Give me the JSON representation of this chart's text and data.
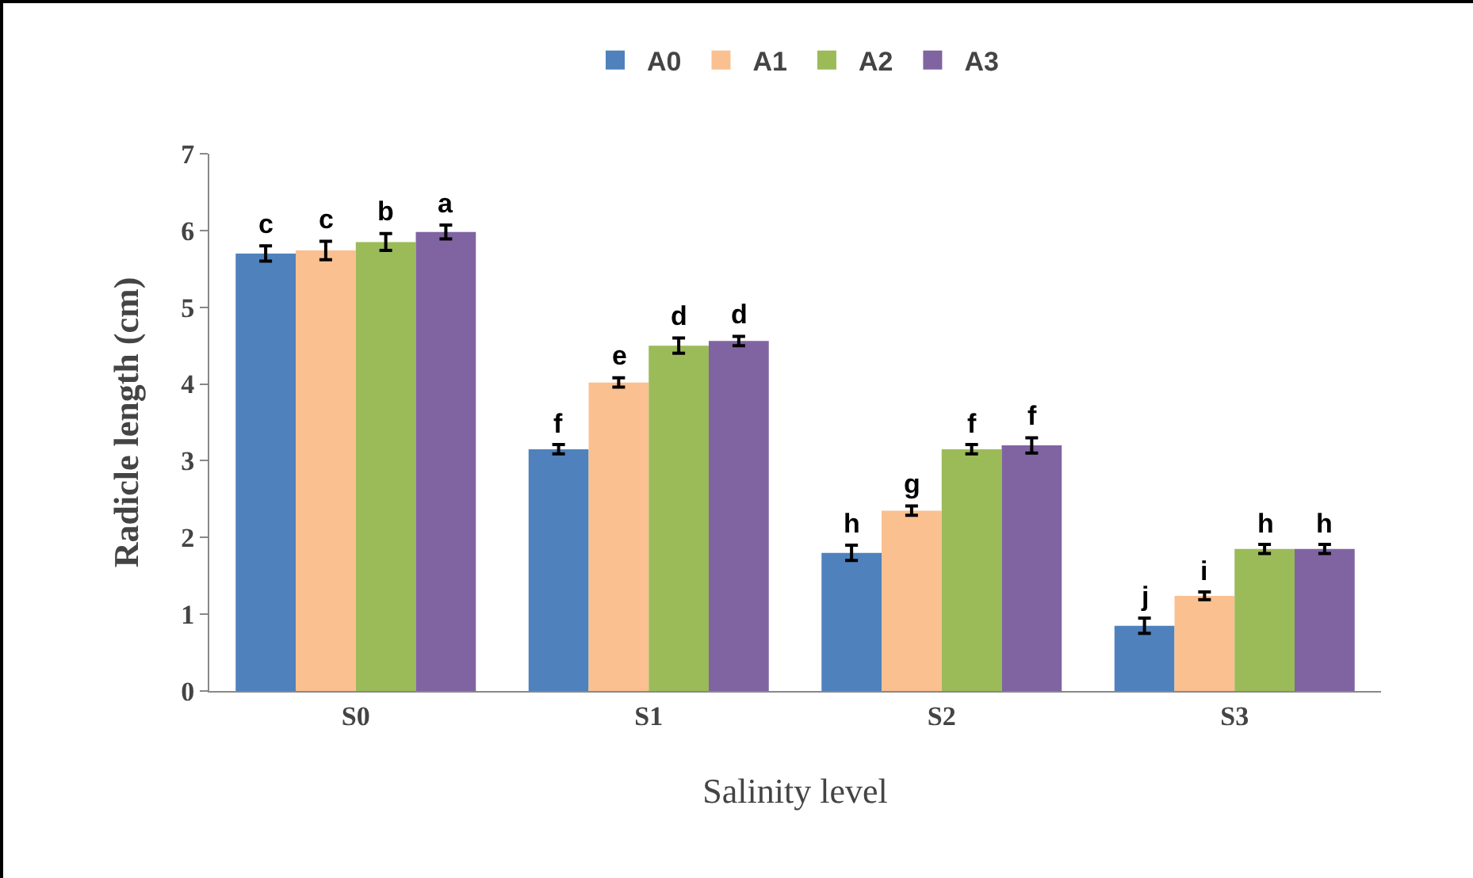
{
  "chart_data": {
    "type": "bar",
    "xlabel": "Salinity level",
    "ylabel": "Radicle length (cm)",
    "categories": [
      "S0",
      "S1",
      "S2",
      "S3"
    ],
    "ylim": [
      0,
      7
    ],
    "yticks": [
      0,
      1,
      2,
      3,
      4,
      5,
      6,
      7
    ],
    "grid": false,
    "legend": "top",
    "series": [
      {
        "name": "A0",
        "color": "#4f81bd",
        "values": [
          5.7,
          3.15,
          1.8,
          0.85
        ],
        "errors": [
          0.1,
          0.06,
          0.1,
          0.1
        ],
        "value_labels": [
          "c",
          "f",
          "h",
          "j"
        ]
      },
      {
        "name": "A1",
        "color": "#fac090",
        "values": [
          5.74,
          4.02,
          2.35,
          1.24
        ],
        "errors": [
          0.12,
          0.06,
          0.06,
          0.05
        ],
        "value_labels": [
          "c",
          "e",
          "g",
          "i"
        ]
      },
      {
        "name": "A2",
        "color": "#9bbb59",
        "values": [
          5.85,
          4.5,
          3.15,
          1.85
        ],
        "errors": [
          0.11,
          0.1,
          0.06,
          0.06
        ],
        "value_labels": [
          "b",
          "d",
          "f",
          "h"
        ]
      },
      {
        "name": "A3",
        "color": "#8064a2",
        "values": [
          5.98,
          4.56,
          3.2,
          1.85
        ],
        "errors": [
          0.09,
          0.06,
          0.1,
          0.06
        ],
        "value_labels": [
          "a",
          "d",
          "f",
          "h"
        ]
      }
    ]
  }
}
